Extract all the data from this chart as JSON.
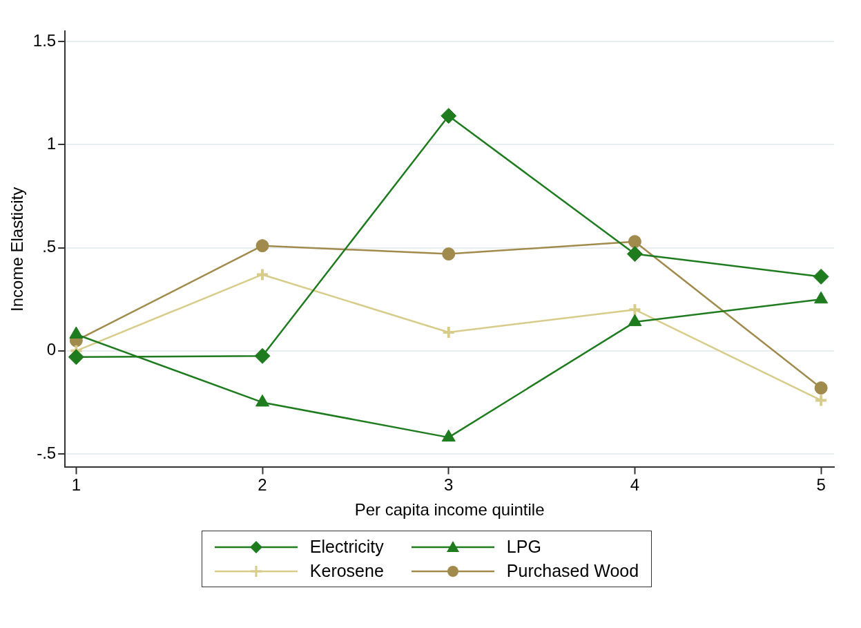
{
  "chart_data": {
    "type": "line",
    "xlabel": "Per capita income quintile",
    "ylabel": "Income Elasticity",
    "x": [
      1,
      2,
      3,
      4,
      5
    ],
    "xlim": [
      0.94,
      5.07
    ],
    "xticks": [
      1,
      2,
      3,
      4,
      5
    ],
    "ylim": [
      -0.565,
      1.55
    ],
    "yticks": [
      {
        "value": -0.5,
        "label": "-.5"
      },
      0,
      {
        "value": 0.5,
        "label": ".5"
      },
      1,
      1.5
    ],
    "grid": "y",
    "legend": "bottom",
    "series": [
      {
        "name": "Electricity",
        "color": "#1e7b1e",
        "marker": "diamond",
        "values": [
          -0.03,
          -0.025,
          1.14,
          0.47,
          0.36
        ]
      },
      {
        "name": "LPG",
        "color": "#1e7b1e",
        "marker": "triangle",
        "values": [
          0.08,
          -0.25,
          -0.42,
          0.14,
          0.25
        ]
      },
      {
        "name": "Kerosene",
        "color": "#d8cc8a",
        "marker": "cross",
        "values": [
          0.0,
          0.37,
          0.09,
          0.2,
          -0.24
        ]
      },
      {
        "name": "Purchased Wood",
        "color": "#a08a4c",
        "marker": "circle",
        "values": [
          0.05,
          0.51,
          0.47,
          0.53,
          -0.18
        ]
      }
    ]
  }
}
